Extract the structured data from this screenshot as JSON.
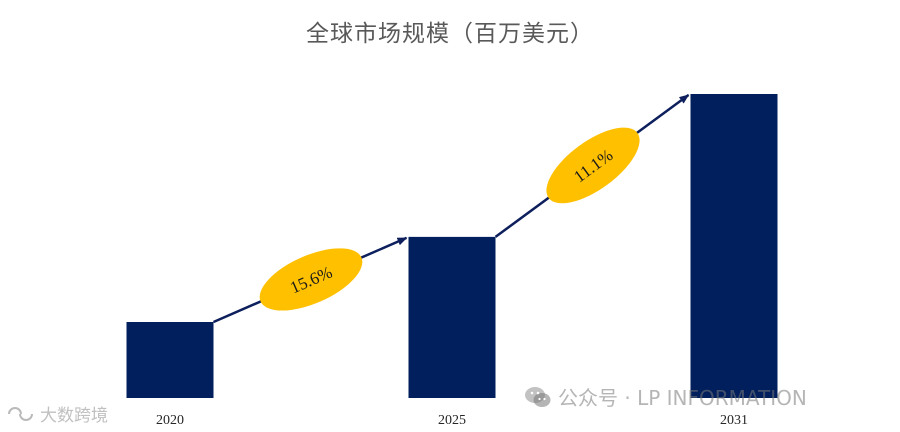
{
  "chart_data": {
    "type": "bar",
    "title": "全球市场规模（百万美元）",
    "categories": [
      "2020",
      "2025",
      "2031"
    ],
    "values": [
      25,
      53,
      100
    ],
    "ylim": [
      0,
      100
    ],
    "grid": false,
    "bar_color": "#001f5c",
    "growth_annotations": [
      {
        "from": "2020",
        "to": "2025",
        "label": "15.6%"
      },
      {
        "from": "2025",
        "to": "2031",
        "label": "11.1%"
      }
    ],
    "annotation_color": "#ffc000",
    "arrow_color": "#0d1f5c"
  },
  "watermarks": {
    "source": "公众号 · LP INFORMATION",
    "source_icon": "wechat-icon",
    "brand": "大数跨境",
    "brand_icon": "brand-logo-icon"
  }
}
